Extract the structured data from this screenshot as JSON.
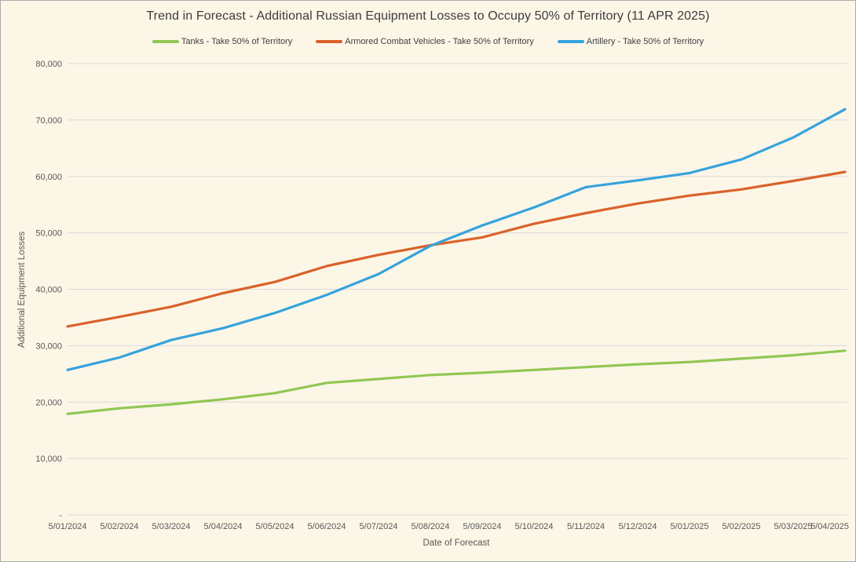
{
  "title": "Trend in Forecast - Additional Russian Equipment Losses to Occupy 50% of Territory (11 APR 2025)",
  "colors": {
    "background": "#FCF6E7",
    "grid": "#D9D9D9",
    "title_text": "#3C3C3C",
    "axis_text": "#595959",
    "border": "#ABABAB",
    "tanks_green": "#90C753",
    "acv_orange": "#D9622B",
    "artillery_blue": "#35A3DC"
  },
  "legend": {
    "items": [
      {
        "label": "Tanks - Take 50% of Territory",
        "color": "#90C753"
      },
      {
        "label": "Armored Combat Vehicles - Take 50% of Territory",
        "color": "#D9622B"
      },
      {
        "label": "Artillery - Take 50% of Territory",
        "color": "#35A3DC"
      }
    ]
  },
  "chart_data": {
    "type": "line",
    "title": "Trend in Forecast - Additional Russian Equipment Losses to Occupy 50% of Territory (11 APR 2025)",
    "xlabel": "Date of Forecast",
    "ylabel": "Additional Equipment Losses",
    "categories": [
      "5/01/2024",
      "5/02/2024",
      "5/03/2024",
      "5/04/2024",
      "5/05/2024",
      "5/06/2024",
      "5/07/2024",
      "5/08/2024",
      "5/09/2024",
      "5/10/2024",
      "5/11/2024",
      "5/12/2024",
      "5/01/2025",
      "5/02/2025",
      "5/03/2025",
      "5/04/2025"
    ],
    "series": [
      {
        "name": "Tanks - Take 50% of Territory",
        "color": "#90C753",
        "values": [
          17900,
          18900,
          19600,
          20500,
          21600,
          23400,
          24100,
          24800,
          25200,
          25700,
          26200,
          26700,
          27100,
          27700,
          28300,
          29100
        ]
      },
      {
        "name": "Armored Combat Vehicles - Take 50% of Territory",
        "color": "#D9622B",
        "values": [
          33400,
          35100,
          36900,
          39300,
          41300,
          44100,
          46100,
          47800,
          49200,
          51600,
          53500,
          55200,
          56600,
          57700,
          59200,
          60800
        ]
      },
      {
        "name": "Artillery - Take 50% of Territory",
        "color": "#35A3DC",
        "values": [
          25700,
          27900,
          31000,
          33100,
          35800,
          39000,
          42700,
          47700,
          51300,
          54500,
          58100,
          59300,
          60600,
          63000,
          66900,
          71900
        ]
      }
    ],
    "ylim": [
      0,
      80000
    ],
    "ytick_step": 10000,
    "ytick_labels": [
      "-",
      "10,000",
      "20,000",
      "30,000",
      "40,000",
      "50,000",
      "60,000",
      "70,000",
      "80,000"
    ],
    "grid": true,
    "legend_position": "top"
  }
}
